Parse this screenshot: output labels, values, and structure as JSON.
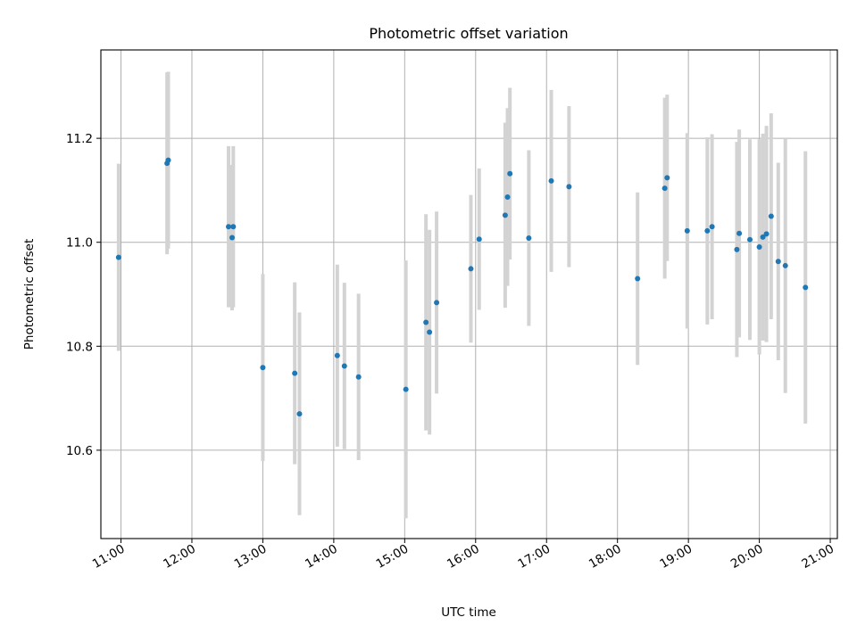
{
  "chart_data": {
    "type": "scatter",
    "title": "Photometric offset variation",
    "xlabel": "UTC time",
    "ylabel": "Photometric offset",
    "xlim": [
      "10:43",
      "21:06"
    ],
    "ylim": [
      10.43,
      11.37
    ],
    "xticks": [
      "11:00",
      "12:00",
      "13:00",
      "14:00",
      "15:00",
      "16:00",
      "17:00",
      "18:00",
      "19:00",
      "20:00",
      "21:00"
    ],
    "yticks": [
      10.6,
      10.8,
      11.0,
      11.2
    ],
    "ytick_labels": [
      "10.6",
      "10.8",
      "11.0",
      "11.2"
    ],
    "grid": true,
    "colors": {
      "marker": "#1f77b4",
      "errorbar": "#d3d3d3",
      "grid": "#b0b0b0"
    },
    "points": [
      {
        "x": "10:58",
        "y": 10.971,
        "err": 0.18
      },
      {
        "x": "11:39",
        "y": 11.152,
        "err": 0.175
      },
      {
        "x": "11:40",
        "y": 11.158,
        "err": 0.17
      },
      {
        "x": "12:31",
        "y": 11.03,
        "err": 0.155
      },
      {
        "x": "12:34",
        "y": 11.009,
        "err": 0.14
      },
      {
        "x": "12:35",
        "y": 11.03,
        "err": 0.155
      },
      {
        "x": "13:00",
        "y": 10.759,
        "err": 0.18
      },
      {
        "x": "13:27",
        "y": 10.748,
        "err": 0.175
      },
      {
        "x": "13:31",
        "y": 10.67,
        "err": 0.195
      },
      {
        "x": "14:03",
        "y": 10.782,
        "err": 0.175
      },
      {
        "x": "14:09",
        "y": 10.762,
        "err": 0.16
      },
      {
        "x": "14:21",
        "y": 10.741,
        "err": 0.16
      },
      {
        "x": "15:01",
        "y": 10.717,
        "err": 0.248
      },
      {
        "x": "15:18",
        "y": 10.846,
        "err": 0.208
      },
      {
        "x": "15:21",
        "y": 10.827,
        "err": 0.197
      },
      {
        "x": "15:27",
        "y": 10.884,
        "err": 0.175
      },
      {
        "x": "15:56",
        "y": 10.949,
        "err": 0.142
      },
      {
        "x": "16:03",
        "y": 11.006,
        "err": 0.136
      },
      {
        "x": "16:25",
        "y": 11.052,
        "err": 0.178
      },
      {
        "x": "16:27",
        "y": 11.087,
        "err": 0.171
      },
      {
        "x": "16:29",
        "y": 11.132,
        "err": 0.165
      },
      {
        "x": "16:45",
        "y": 11.008,
        "err": 0.169
      },
      {
        "x": "17:04",
        "y": 11.118,
        "err": 0.175
      },
      {
        "x": "17:19",
        "y": 11.107,
        "err": 0.155
      },
      {
        "x": "18:17",
        "y": 10.93,
        "err": 0.166
      },
      {
        "x": "18:40",
        "y": 11.104,
        "err": 0.174
      },
      {
        "x": "18:42",
        "y": 11.124,
        "err": 0.16
      },
      {
        "x": "18:59",
        "y": 11.022,
        "err": 0.188
      },
      {
        "x": "19:16",
        "y": 11.022,
        "err": 0.18
      },
      {
        "x": "19:20",
        "y": 11.03,
        "err": 0.178
      },
      {
        "x": "19:41",
        "y": 10.986,
        "err": 0.207
      },
      {
        "x": "19:43",
        "y": 11.017,
        "err": 0.2
      },
      {
        "x": "19:52",
        "y": 11.005,
        "err": 0.193
      },
      {
        "x": "20:00",
        "y": 10.991,
        "err": 0.207
      },
      {
        "x": "20:03",
        "y": 11.01,
        "err": 0.199
      },
      {
        "x": "20:06",
        "y": 11.016,
        "err": 0.208
      },
      {
        "x": "20:10",
        "y": 11.05,
        "err": 0.198
      },
      {
        "x": "20:16",
        "y": 10.963,
        "err": 0.19
      },
      {
        "x": "20:22",
        "y": 10.955,
        "err": 0.245
      },
      {
        "x": "20:39",
        "y": 10.913,
        "err": 0.262
      }
    ]
  }
}
